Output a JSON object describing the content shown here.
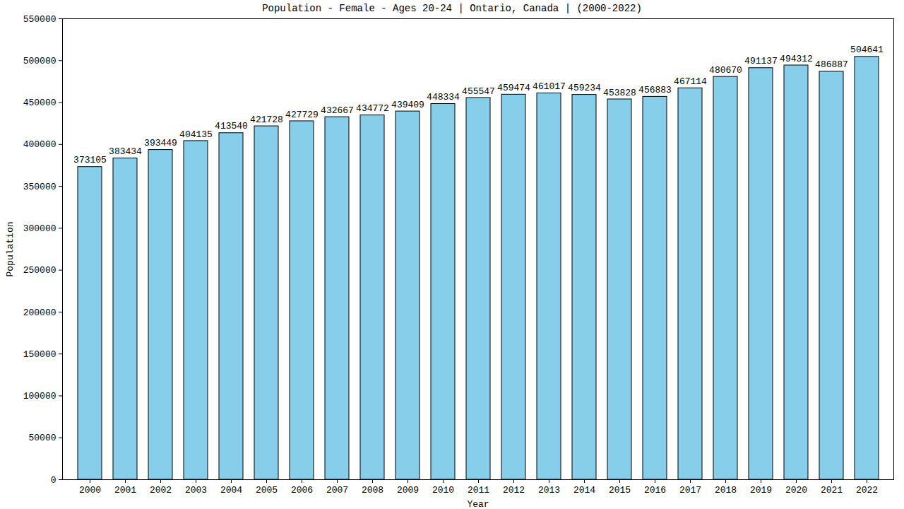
{
  "chart_data": {
    "type": "bar",
    "title": "Population - Female - Ages 20-24 | Ontario, Canada |  (2000-2022)",
    "xlabel": "Year",
    "ylabel": "Population",
    "categories": [
      "2000",
      "2001",
      "2002",
      "2003",
      "2004",
      "2005",
      "2006",
      "2007",
      "2008",
      "2009",
      "2010",
      "2011",
      "2012",
      "2013",
      "2014",
      "2015",
      "2016",
      "2017",
      "2018",
      "2019",
      "2020",
      "2021",
      "2022"
    ],
    "values": [
      373105,
      383434,
      393449,
      404135,
      413540,
      421728,
      427729,
      432667,
      434772,
      439409,
      448334,
      455547,
      459474,
      461017,
      459234,
      453828,
      456883,
      467114,
      480670,
      491137,
      494312,
      486887,
      504641
    ],
    "color": "#87ceeb",
    "ylim": [
      0,
      550000
    ],
    "yticks": [
      0,
      50000,
      100000,
      150000,
      200000,
      250000,
      300000,
      350000,
      400000,
      450000,
      500000,
      550000
    ],
    "grid": false,
    "data_labels": true
  }
}
